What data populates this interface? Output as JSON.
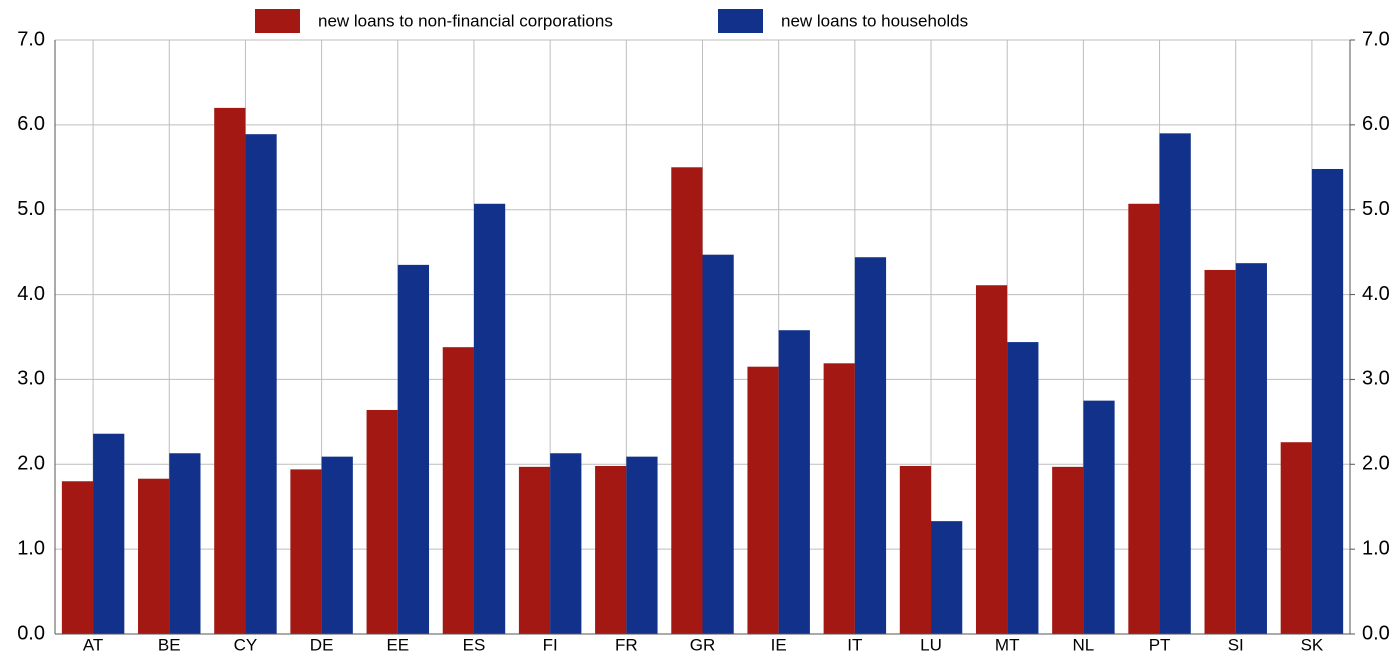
{
  "chart_data": {
    "type": "bar",
    "categories": [
      "AT",
      "BE",
      "CY",
      "DE",
      "EE",
      "ES",
      "FI",
      "FR",
      "GR",
      "IE",
      "IT",
      "LU",
      "MT",
      "NL",
      "PT",
      "SI",
      "SK"
    ],
    "series": [
      {
        "name": "new loans to non-financial corporations",
        "color": "#a31812",
        "values": [
          1.8,
          1.83,
          6.2,
          1.94,
          2.64,
          3.38,
          1.97,
          1.98,
          5.5,
          3.15,
          3.19,
          1.98,
          4.11,
          1.97,
          5.07,
          4.29,
          2.26
        ]
      },
      {
        "name": "new loans to households",
        "color": "#12318a",
        "values": [
          2.36,
          2.13,
          5.89,
          2.09,
          4.35,
          5.07,
          2.13,
          2.09,
          4.47,
          3.58,
          4.44,
          1.33,
          3.44,
          2.75,
          5.9,
          4.37,
          5.48
        ]
      }
    ],
    "ylim": [
      0,
      7
    ],
    "yticks": [
      {
        "value": 0,
        "label": "0.0"
      },
      {
        "value": 1,
        "label": "1.0"
      },
      {
        "value": 2,
        "label": "2.0"
      },
      {
        "value": 3,
        "label": "3.0"
      },
      {
        "value": 4,
        "label": "4.0"
      },
      {
        "value": 5,
        "label": "5.0"
      },
      {
        "value": 6,
        "label": "6.0"
      },
      {
        "value": 7,
        "label": "7.0"
      }
    ],
    "y2lim": [
      0,
      7
    ],
    "y2ticks": [
      {
        "value": 0,
        "label": "0.0"
      },
      {
        "value": 1,
        "label": "1.0"
      },
      {
        "value": 2,
        "label": "2.0"
      },
      {
        "value": 3,
        "label": "3.0"
      },
      {
        "value": 4,
        "label": "4.0"
      },
      {
        "value": 5,
        "label": "5.0"
      },
      {
        "value": 6,
        "label": "6.0"
      },
      {
        "value": 7,
        "label": "7.0"
      }
    ],
    "grid": true,
    "legend": "top"
  }
}
